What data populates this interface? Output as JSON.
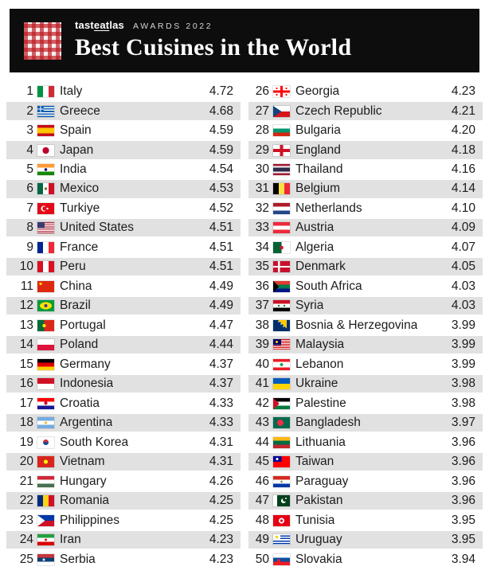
{
  "header": {
    "brand_pre": "tast",
    "brand_mid": "eat",
    "brand_post": "las",
    "awards": "AWARDS 2022",
    "title": "Best Cuisines in the World"
  },
  "colors": {
    "header_bg": "#0d0d0d",
    "logo_red": "#bd1a21",
    "row_stripe": "#e1e1e1",
    "text": "#1c1c1c"
  },
  "chart_data": {
    "type": "table",
    "title": "Best Cuisines in the World",
    "subtitle": "tasteatlas AWARDS 2022",
    "columns_meta": [
      "rank",
      "flag",
      "country",
      "score"
    ],
    "score_range": [
      3.94,
      4.72
    ],
    "layout": "two columns: ranks 1-25 left, ranks 26-50 right, alternating gray stripes",
    "columns": [
      {
        "side": "left",
        "rows": [
          {
            "rank": "1",
            "flag": "it",
            "country": "Italy",
            "score": "4.72"
          },
          {
            "rank": "2",
            "flag": "gr",
            "country": "Greece",
            "score": "4.68"
          },
          {
            "rank": "3",
            "flag": "es",
            "country": "Spain",
            "score": "4.59"
          },
          {
            "rank": "4",
            "flag": "jp",
            "country": "Japan",
            "score": "4.59"
          },
          {
            "rank": "5",
            "flag": "in",
            "country": "India",
            "score": "4.54"
          },
          {
            "rank": "6",
            "flag": "mx",
            "country": "Mexico",
            "score": "4.53"
          },
          {
            "rank": "7",
            "flag": "tr",
            "country": "Turkiye",
            "score": "4.52"
          },
          {
            "rank": "8",
            "flag": "us",
            "country": "United States",
            "score": "4.51"
          },
          {
            "rank": "9",
            "flag": "fr",
            "country": "France",
            "score": "4.51"
          },
          {
            "rank": "10",
            "flag": "pe",
            "country": "Peru",
            "score": "4.51"
          },
          {
            "rank": "11",
            "flag": "cn",
            "country": "China",
            "score": "4.49"
          },
          {
            "rank": "12",
            "flag": "br",
            "country": "Brazil",
            "score": "4.49"
          },
          {
            "rank": "13",
            "flag": "pt",
            "country": "Portugal",
            "score": "4.47"
          },
          {
            "rank": "14",
            "flag": "pl",
            "country": "Poland",
            "score": "4.44"
          },
          {
            "rank": "15",
            "flag": "de",
            "country": "Germany",
            "score": "4.37"
          },
          {
            "rank": "16",
            "flag": "id",
            "country": "Indonesia",
            "score": "4.37"
          },
          {
            "rank": "17",
            "flag": "hr",
            "country": "Croatia",
            "score": "4.33"
          },
          {
            "rank": "18",
            "flag": "ar",
            "country": "Argentina",
            "score": "4.33"
          },
          {
            "rank": "19",
            "flag": "kr",
            "country": "South Korea",
            "score": "4.31"
          },
          {
            "rank": "20",
            "flag": "vn",
            "country": "Vietnam",
            "score": "4.31"
          },
          {
            "rank": "21",
            "flag": "hu",
            "country": "Hungary",
            "score": "4.26"
          },
          {
            "rank": "22",
            "flag": "ro",
            "country": "Romania",
            "score": "4.25"
          },
          {
            "rank": "23",
            "flag": "ph",
            "country": "Philippines",
            "score": "4.25"
          },
          {
            "rank": "24",
            "flag": "ir",
            "country": "Iran",
            "score": "4.23"
          },
          {
            "rank": "25",
            "flag": "rs",
            "country": "Serbia",
            "score": "4.23"
          }
        ]
      },
      {
        "side": "right",
        "rows": [
          {
            "rank": "26",
            "flag": "ge",
            "country": "Georgia",
            "score": "4.23"
          },
          {
            "rank": "27",
            "flag": "cz",
            "country": "Czech Republic",
            "score": "4.21"
          },
          {
            "rank": "28",
            "flag": "bg",
            "country": "Bulgaria",
            "score": "4.20"
          },
          {
            "rank": "29",
            "flag": "en",
            "country": "England",
            "score": "4.18"
          },
          {
            "rank": "30",
            "flag": "th",
            "country": "Thailand",
            "score": "4.16"
          },
          {
            "rank": "31",
            "flag": "be",
            "country": "Belgium",
            "score": "4.14"
          },
          {
            "rank": "32",
            "flag": "nl",
            "country": "Netherlands",
            "score": "4.10"
          },
          {
            "rank": "33",
            "flag": "at",
            "country": "Austria",
            "score": "4.09"
          },
          {
            "rank": "34",
            "flag": "dz",
            "country": "Algeria",
            "score": "4.07"
          },
          {
            "rank": "35",
            "flag": "dk",
            "country": "Denmark",
            "score": "4.05"
          },
          {
            "rank": "36",
            "flag": "za",
            "country": "South Africa",
            "score": "4.03"
          },
          {
            "rank": "37",
            "flag": "sy",
            "country": "Syria",
            "score": "4.03"
          },
          {
            "rank": "38",
            "flag": "ba",
            "country": "Bosnia & Herzegovina",
            "score": "3.99"
          },
          {
            "rank": "39",
            "flag": "my",
            "country": "Malaysia",
            "score": "3.99"
          },
          {
            "rank": "40",
            "flag": "lb",
            "country": "Lebanon",
            "score": "3.99"
          },
          {
            "rank": "41",
            "flag": "ua",
            "country": "Ukraine",
            "score": "3.98"
          },
          {
            "rank": "42",
            "flag": "ps",
            "country": "Palestine",
            "score": "3.98"
          },
          {
            "rank": "43",
            "flag": "bd",
            "country": "Bangladesh",
            "score": "3.97"
          },
          {
            "rank": "44",
            "flag": "lt",
            "country": "Lithuania",
            "score": "3.96"
          },
          {
            "rank": "45",
            "flag": "tw",
            "country": "Taiwan",
            "score": "3.96"
          },
          {
            "rank": "46",
            "flag": "py",
            "country": "Paraguay",
            "score": "3.96"
          },
          {
            "rank": "47",
            "flag": "pk",
            "country": "Pakistan",
            "score": "3.96"
          },
          {
            "rank": "48",
            "flag": "tn",
            "country": "Tunisia",
            "score": "3.95"
          },
          {
            "rank": "49",
            "flag": "uy",
            "country": "Uruguay",
            "score": "3.95"
          },
          {
            "rank": "50",
            "flag": "sk",
            "country": "Slovakia",
            "score": "3.94"
          }
        ]
      }
    ]
  }
}
